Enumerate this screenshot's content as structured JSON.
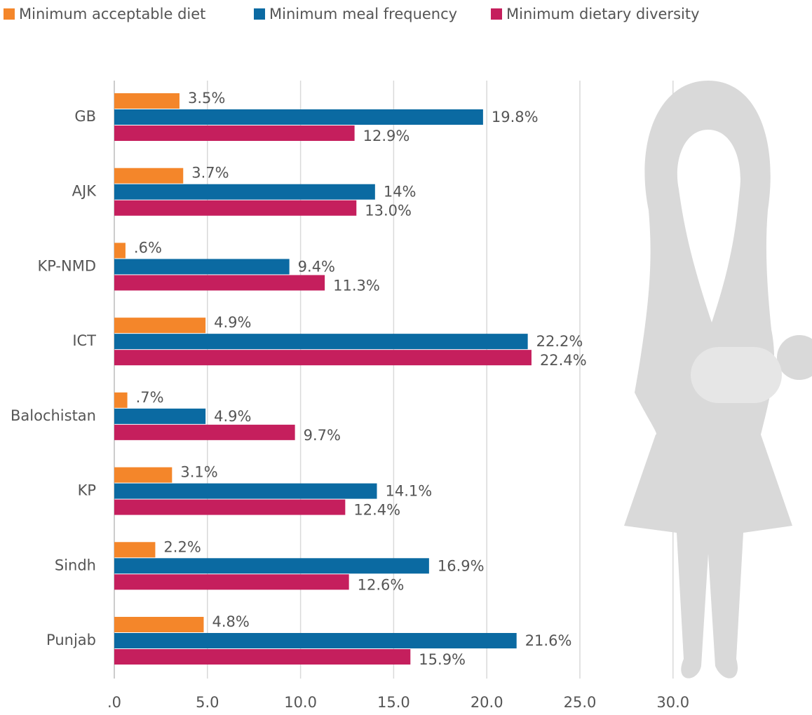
{
  "chart_data": {
    "type": "bar",
    "orientation": "horizontal",
    "categories": [
      "GB",
      "AJK",
      "KP-NMD",
      "ICT",
      "Balochistan",
      "KP",
      "Sindh",
      "Punjab"
    ],
    "series": [
      {
        "name": "Minimum acceptable diet",
        "color": "#f4862a",
        "values": [
          3.5,
          3.7,
          0.6,
          4.9,
          0.7,
          3.1,
          2.2,
          4.8
        ],
        "value_labels": [
          "3.5%",
          "3.7%",
          ".6%",
          "4.9%",
          ".7%",
          "3.1%",
          "2.2%",
          "4.8%"
        ]
      },
      {
        "name": "Minimum meal frequency",
        "color": "#0b6aa2",
        "values": [
          19.8,
          14,
          9.4,
          22.2,
          4.9,
          14.1,
          16.9,
          21.6
        ],
        "value_labels": [
          "19.8%",
          "14%",
          "9.4%",
          "22.2%",
          "4.9%",
          "14.1%",
          "16.9%",
          "21.6%"
        ]
      },
      {
        "name": "Minimum dietary diversity",
        "color": "#c51f5d",
        "values": [
          12.9,
          13.0,
          11.3,
          22.4,
          9.7,
          12.4,
          12.6,
          15.9
        ],
        "value_labels": [
          "12.9%",
          "13.0%",
          "11.3%",
          "22.4%",
          "9.7%",
          "12.4%",
          "12.6%",
          "15.9%"
        ]
      }
    ],
    "xlim": [
      0,
      30
    ],
    "xticks": [
      {
        "value": 0,
        "label": ".0"
      },
      {
        "value": 5,
        "label": "5.0"
      },
      {
        "value": 10,
        "label": "10.0"
      },
      {
        "value": 15,
        "label": "15.0"
      },
      {
        "value": 20,
        "label": "20.0"
      },
      {
        "value": 25,
        "label": "25.0"
      },
      {
        "value": 30,
        "label": "30.0"
      }
    ],
    "grid": true,
    "legend": "top"
  }
}
